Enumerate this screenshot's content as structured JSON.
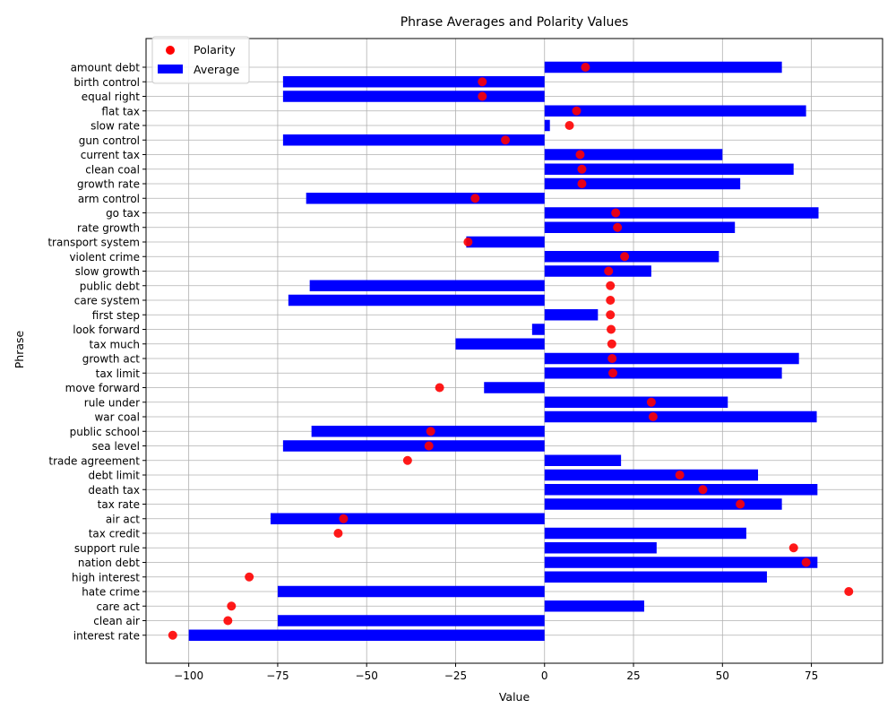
{
  "chart_data": {
    "type": "bar",
    "orientation": "horizontal",
    "title": "Phrase Averages and Polarity Values",
    "xlabel": "Value",
    "ylabel": "Phrase",
    "xlim": [
      -112,
      95
    ],
    "xticks": [
      -100,
      -75,
      -50,
      -25,
      0,
      25,
      50,
      75
    ],
    "grid": true,
    "legend_position": "top-left",
    "colors": {
      "average": "#0000ff",
      "polarity": "#ff0000"
    },
    "categories": [
      "amount debt",
      "birth control",
      "equal right",
      "flat tax",
      "slow rate",
      "gun control",
      "current tax",
      "clean coal",
      "growth rate",
      "arm control",
      "go tax",
      "rate growth",
      "transport system",
      "violent crime",
      "slow growth",
      "public debt",
      "care system",
      "first step",
      "look forward",
      "tax much",
      "growth act",
      "tax limit",
      "move forward",
      "rule under",
      "war coal",
      "public school",
      "sea level",
      "trade agreement",
      "debt limit",
      "death tax",
      "tax rate",
      "air act",
      "tax credit",
      "support rule",
      "nation debt",
      "high interest",
      "hate crime",
      "care act",
      "clean air",
      "interest rate"
    ],
    "series": [
      {
        "name": "Average",
        "kind": "bar",
        "values": [
          66.7,
          -73.5,
          -73.5,
          73.5,
          1.5,
          -73.5,
          50.0,
          70.0,
          55.0,
          -67.0,
          77.0,
          53.5,
          -22.0,
          49.0,
          30.0,
          -66.0,
          -72.0,
          15.0,
          -3.5,
          -25.0,
          71.5,
          66.7,
          -17.0,
          51.5,
          76.5,
          -65.5,
          -73.5,
          21.5,
          60.0,
          76.7,
          66.7,
          -77.0,
          56.7,
          31.5,
          76.7,
          62.5,
          -75.0,
          28.0,
          -75.0,
          -100.0
        ]
      },
      {
        "name": "Polarity",
        "kind": "scatter",
        "values": [
          11.5,
          -17.5,
          -17.5,
          9.0,
          7.0,
          -11.0,
          10.0,
          10.5,
          10.5,
          -19.5,
          20.0,
          20.5,
          -21.5,
          22.5,
          18.0,
          18.5,
          18.5,
          18.5,
          18.7,
          18.9,
          19.0,
          19.2,
          -29.5,
          30.0,
          30.5,
          -32.0,
          -32.5,
          -38.5,
          38.0,
          44.5,
          55.0,
          -56.5,
          -58.0,
          70.0,
          73.5,
          -83.0,
          85.5,
          -88.0,
          -89.0,
          -104.5
        ]
      }
    ]
  }
}
